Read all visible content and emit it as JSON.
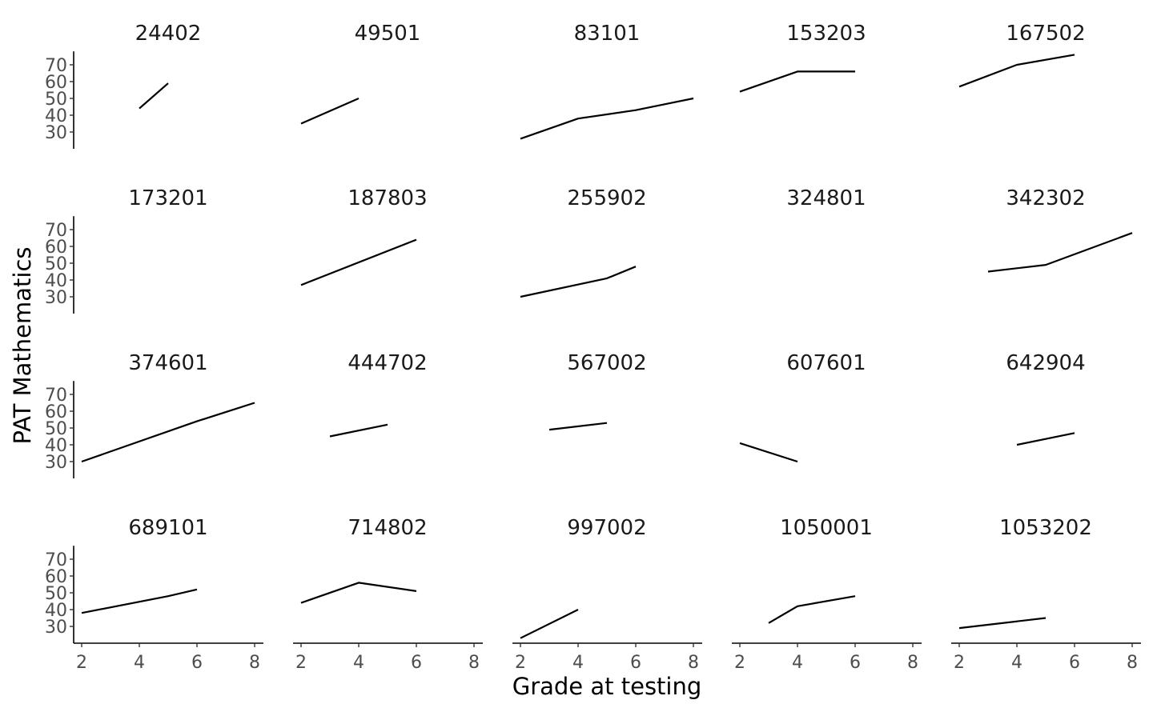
{
  "chart_data": {
    "type": "line",
    "layout": "facet-grid",
    "rows": 4,
    "cols": 5,
    "xlabel": "Grade at testing",
    "ylabel": "PAT Mathematics",
    "xlim": [
      1.7,
      8.3
    ],
    "ylim": [
      20,
      78
    ],
    "x_ticks": [
      2,
      4,
      6,
      8
    ],
    "y_ticks": [
      30,
      40,
      50,
      60,
      70
    ],
    "grid": false,
    "line_color": "#000000",
    "panels": [
      {
        "id": "24402",
        "points": [
          [
            4,
            44
          ],
          [
            5,
            59
          ]
        ]
      },
      {
        "id": "49501",
        "points": [
          [
            2,
            35
          ],
          [
            4,
            50
          ]
        ]
      },
      {
        "id": "83101",
        "points": [
          [
            2,
            26
          ],
          [
            4,
            38
          ],
          [
            6,
            43
          ],
          [
            8,
            50
          ]
        ]
      },
      {
        "id": "153203",
        "points": [
          [
            2,
            54
          ],
          [
            4,
            66
          ],
          [
            6,
            66
          ]
        ]
      },
      {
        "id": "167502",
        "points": [
          [
            2,
            57
          ],
          [
            4,
            70
          ],
          [
            6,
            76
          ]
        ]
      },
      {
        "id": "173201",
        "points": []
      },
      {
        "id": "187803",
        "points": [
          [
            2,
            37
          ],
          [
            6,
            64
          ]
        ]
      },
      {
        "id": "255902",
        "points": [
          [
            2,
            30
          ],
          [
            5,
            41
          ],
          [
            6,
            48
          ]
        ]
      },
      {
        "id": "324801",
        "points": []
      },
      {
        "id": "342302",
        "points": [
          [
            3,
            45
          ],
          [
            5,
            49
          ],
          [
            8,
            68
          ]
        ]
      },
      {
        "id": "374601",
        "points": [
          [
            2,
            30
          ],
          [
            6,
            54
          ],
          [
            8,
            65
          ]
        ]
      },
      {
        "id": "444702",
        "points": [
          [
            3,
            45
          ],
          [
            5,
            52
          ]
        ]
      },
      {
        "id": "567002",
        "points": [
          [
            3,
            49
          ],
          [
            5,
            53
          ]
        ]
      },
      {
        "id": "607601",
        "points": [
          [
            2,
            41
          ],
          [
            4,
            30
          ]
        ]
      },
      {
        "id": "642904",
        "points": [
          [
            4,
            40
          ],
          [
            6,
            47
          ]
        ]
      },
      {
        "id": "689101",
        "points": [
          [
            2,
            38
          ],
          [
            5,
            48
          ],
          [
            6,
            52
          ]
        ]
      },
      {
        "id": "714802",
        "points": [
          [
            2,
            44
          ],
          [
            4,
            56
          ],
          [
            6,
            51
          ]
        ]
      },
      {
        "id": "997002",
        "points": [
          [
            2,
            23
          ],
          [
            4,
            40
          ]
        ]
      },
      {
        "id": "1050001",
        "points": [
          [
            3,
            32
          ],
          [
            4,
            42
          ],
          [
            6,
            48
          ]
        ]
      },
      {
        "id": "1053202",
        "points": [
          [
            2,
            29
          ],
          [
            5,
            35
          ]
        ]
      }
    ]
  }
}
